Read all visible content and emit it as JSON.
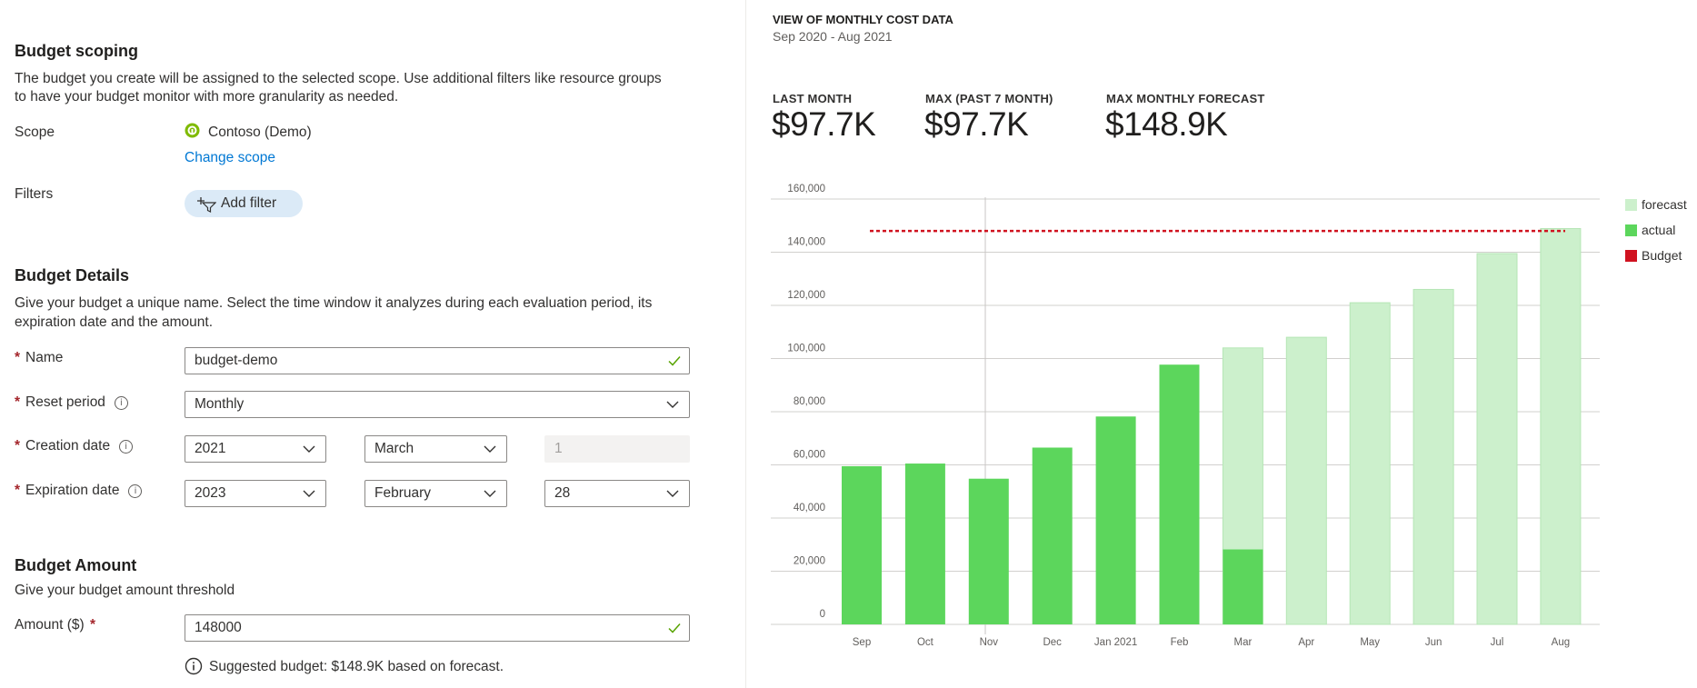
{
  "scoping": {
    "title": "Budget scoping",
    "description_line1": "The budget you create will be assigned to the selected scope. Use additional filters like resource groups",
    "description_line2": "to have your budget monitor with more granularity as needed.",
    "scope_label": "Scope",
    "scope_value": "Contoso (Demo)",
    "change_scope": "Change scope",
    "filters_label": "Filters",
    "add_filter": "Add filter"
  },
  "details": {
    "title": "Budget Details",
    "description_line1": "Give your budget a unique name. Select the time window it analyzes during each evaluation period, its",
    "description_line2": "expiration date and the amount.",
    "name_label": "Name",
    "name_value": "budget-demo",
    "reset_label": "Reset period",
    "reset_value": "Monthly",
    "creation_label": "Creation date",
    "creation_year": "2021",
    "creation_month": "March",
    "creation_day": "1",
    "expiration_label": "Expiration date",
    "expiration_year": "2023",
    "expiration_month": "February",
    "expiration_day": "28",
    "required_mark": "*"
  },
  "amount": {
    "title": "Budget Amount",
    "description": "Give your budget amount threshold",
    "label": "Amount ($)",
    "required_mark": "*",
    "value": "148000",
    "suggestion": "Suggested budget: $148.9K based on forecast."
  },
  "panel": {
    "title": "VIEW OF MONTHLY COST DATA",
    "range": "Sep 2020 - Aug 2021",
    "kpis": [
      {
        "label": "LAST MONTH",
        "value": "$97.7K"
      },
      {
        "label": "MAX (PAST 7 MONTH)",
        "value": "$97.7K"
      },
      {
        "label": "MAX MONTHLY FORECAST",
        "value": "$148.9K"
      }
    ]
  },
  "colors": {
    "actual": "#5cd65c",
    "forecast": "#ccf0cc",
    "budget": "#d0121f",
    "link": "#0078d4"
  },
  "chart_data": {
    "type": "bar",
    "categories": [
      "Sep",
      "Oct",
      "Nov",
      "Dec",
      "Jan 2021",
      "Feb",
      "Mar",
      "Apr",
      "May",
      "Jun",
      "Jul",
      "Aug"
    ],
    "series": [
      {
        "name": "actual",
        "values": [
          59500,
          60500,
          54800,
          66500,
          78200,
          97700,
          28200,
          null,
          null,
          null,
          null,
          null
        ]
      },
      {
        "name": "forecast",
        "values": [
          null,
          null,
          null,
          null,
          null,
          null,
          104000,
          108000,
          121000,
          126000,
          139500,
          148900
        ]
      }
    ],
    "budget": 148000,
    "budget_label": "Budget",
    "y_ticks": [
      "0",
      "20,000",
      "40,000",
      "60,000",
      "80,000",
      "100,000",
      "120,000",
      "140,000",
      "160,000"
    ],
    "ylim": [
      0,
      168000
    ],
    "grid": true,
    "legend": "top-right",
    "legend_entries": [
      "forecast",
      "actual",
      "Budget"
    ]
  }
}
